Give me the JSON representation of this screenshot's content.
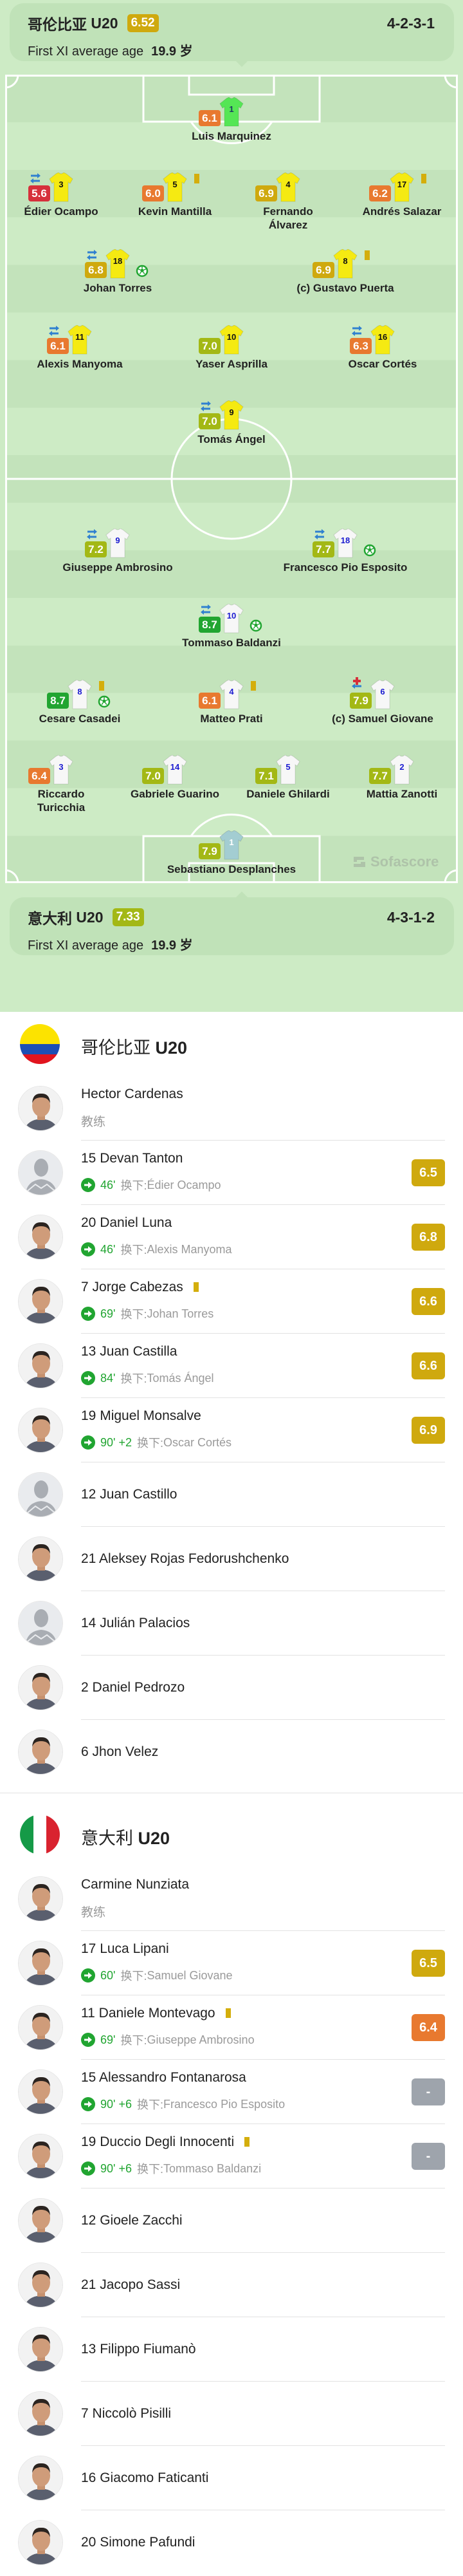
{
  "colors": {
    "red": "#d6303b",
    "orange": "#e8792f",
    "gold": "#cfa90e",
    "lime": "#a3b815",
    "green": "#21a531",
    "none": "#9ea4ac",
    "sub_arrow": "#2f80d0",
    "goal": "#21a531",
    "yellow_card": "#d4ae0c",
    "injury": "#d6303b"
  },
  "teams": [
    {
      "name": "哥伦比亚",
      "suffix": "U20",
      "rating": "6.52",
      "formation": "4-2-3-1",
      "age_label": "First XI average age",
      "age_value": "19.9 岁",
      "kit": {
        "outfield": "#f5ea12",
        "outfield_number": "#111111",
        "gk": "#55e655",
        "gk_number": "#1d3b63"
      },
      "lineup": [
        [
          {
            "number": "1",
            "name": "Luis Marquinez",
            "rating": "6.1"
          }
        ],
        [
          {
            "number": "3",
            "name": "Édier Ocampo",
            "rating": "5.6",
            "sub": true
          },
          {
            "number": "5",
            "name": "Kevin Mantilla",
            "rating": "6.0",
            "yellow": true
          },
          {
            "number": "4",
            "name": "Fernando Álvarez",
            "rating": "6.9"
          },
          {
            "number": "17",
            "name": "Andrés Salazar",
            "rating": "6.2",
            "yellow": true
          }
        ],
        [
          {
            "number": "18",
            "name": "Johan Torres",
            "rating": "6.8",
            "sub": true,
            "goal": true
          },
          {
            "number": "8",
            "name": "(c) Gustavo Puerta",
            "rating": "6.9",
            "yellow": true
          }
        ],
        [
          {
            "number": "11",
            "name": "Alexis Manyoma",
            "rating": "6.1",
            "sub": true
          },
          {
            "number": "10",
            "name": "Yaser Asprilla",
            "rating": "7.0"
          },
          {
            "number": "16",
            "name": "Oscar Cortés",
            "rating": "6.3",
            "sub": true
          }
        ],
        [
          {
            "number": "9",
            "name": "Tomás Ángel",
            "rating": "7.0",
            "sub": true
          }
        ]
      ]
    },
    {
      "name": "意大利",
      "suffix": "U20",
      "rating": "7.33",
      "formation": "4-3-1-2",
      "age_label": "First XI average age",
      "age_value": "19.9 岁",
      "kit": {
        "outfield": "#f7f7f7",
        "outfield_number": "#1a1ad0",
        "gk": "#a3cdd2",
        "gk_number": "#ffffff"
      },
      "lineup": [
        [
          {
            "number": "1",
            "name": "Sebastiano Desplanches",
            "rating": "7.9"
          }
        ],
        [
          {
            "number": "3",
            "name": "Riccardo Turicchia",
            "rating": "6.4"
          },
          {
            "number": "14",
            "name": "Gabriele Guarino",
            "rating": "7.0"
          },
          {
            "number": "5",
            "name": "Daniele Ghilardi",
            "rating": "7.1"
          },
          {
            "number": "2",
            "name": "Mattia Zanotti",
            "rating": "7.7"
          }
        ],
        [
          {
            "number": "8",
            "name": "Cesare Casadei",
            "rating": "8.7",
            "yellow": true,
            "goal": true
          },
          {
            "number": "4",
            "name": "Matteo Prati",
            "rating": "6.1",
            "yellow": true
          },
          {
            "number": "6",
            "name": "(c) Samuel Giovane",
            "rating": "7.9",
            "injury_sub": true
          }
        ],
        [
          {
            "number": "10",
            "name": "Tommaso Baldanzi",
            "rating": "8.7",
            "sub": true,
            "goal": true
          }
        ],
        [
          {
            "number": "9",
            "name": "Giuseppe Ambrosino",
            "rating": "7.2",
            "sub": true
          },
          {
            "number": "18",
            "name": "Francesco Pio Esposito",
            "rating": "7.7",
            "sub": true,
            "goal": true
          }
        ]
      ]
    }
  ],
  "watermark": "Sofascore",
  "bench": [
    {
      "name": "哥伦比亚",
      "suffix": "U20",
      "flag": "colombia",
      "coach": {
        "name": "Hector Cardenas",
        "role": "教练",
        "avatar": "photo"
      },
      "players": [
        {
          "number": "15",
          "name": "Devan Tanton",
          "minute": "46'",
          "added": "",
          "sub_label": "换下:",
          "replaced": "Édier Ocampo",
          "rating": "6.5",
          "avatar": "placeholder"
        },
        {
          "number": "20",
          "name": "Daniel Luna",
          "minute": "46'",
          "added": "",
          "sub_label": "换下:",
          "replaced": "Alexis Manyoma",
          "rating": "6.8",
          "avatar": "photo"
        },
        {
          "number": "7",
          "name": "Jorge Cabezas",
          "yellow": true,
          "minute": "69'",
          "added": "",
          "sub_label": "换下:",
          "replaced": "Johan Torres",
          "rating": "6.6",
          "avatar": "photo"
        },
        {
          "number": "13",
          "name": "Juan Castilla",
          "minute": "84'",
          "added": "",
          "sub_label": "换下:",
          "replaced": "Tomás Ángel",
          "rating": "6.6",
          "avatar": "photo"
        },
        {
          "number": "19",
          "name": "Miguel Monsalve",
          "minute": "90'",
          "added": "+2",
          "sub_label": "换下:",
          "replaced": "Oscar Cortés",
          "rating": "6.9",
          "avatar": "photo"
        },
        {
          "number": "12",
          "name": "Juan Castillo",
          "avatar": "placeholder"
        },
        {
          "number": "21",
          "name": "Aleksey Rojas Fedorushchenko",
          "avatar": "photo"
        },
        {
          "number": "14",
          "name": "Julián Palacios",
          "avatar": "placeholder"
        },
        {
          "number": "2",
          "name": "Daniel Pedrozo",
          "avatar": "photo"
        },
        {
          "number": "6",
          "name": "Jhon Velez",
          "avatar": "photo"
        }
      ]
    },
    {
      "name": "意大利",
      "suffix": "U20",
      "flag": "italy",
      "coach": {
        "name": "Carmine Nunziata",
        "role": "教练",
        "avatar": "photo"
      },
      "players": [
        {
          "number": "17",
          "name": "Luca Lipani",
          "minute": "60'",
          "added": "",
          "sub_label": "换下:",
          "replaced": "Samuel Giovane",
          "rating": "6.5",
          "avatar": "photo"
        },
        {
          "number": "11",
          "name": "Daniele Montevago",
          "yellow": true,
          "minute": "69'",
          "added": "",
          "sub_label": "换下:",
          "replaced": "Giuseppe Ambrosino",
          "rating": "6.4",
          "avatar": "photo"
        },
        {
          "number": "15",
          "name": "Alessandro Fontanarosa",
          "minute": "90'",
          "added": "+6",
          "sub_label": "换下:",
          "replaced": "Francesco Pio Esposito",
          "rating": "-",
          "avatar": "photo"
        },
        {
          "number": "19",
          "name": "Duccio Degli Innocenti",
          "yellow": true,
          "minute": "90'",
          "added": "+6",
          "sub_label": "换下:",
          "replaced": "Tommaso Baldanzi",
          "rating": "-",
          "avatar": "photo"
        },
        {
          "number": "12",
          "name": "Gioele Zacchi",
          "avatar": "photo"
        },
        {
          "number": "21",
          "name": "Jacopo Sassi",
          "avatar": "photo"
        },
        {
          "number": "13",
          "name": "Filippo Fiumanò",
          "avatar": "photo"
        },
        {
          "number": "7",
          "name": "Niccolò Pisilli",
          "avatar": "photo"
        },
        {
          "number": "16",
          "name": "Giacomo Faticanti",
          "avatar": "photo"
        },
        {
          "number": "20",
          "name": "Simone Pafundi",
          "avatar": "photo"
        }
      ]
    }
  ]
}
